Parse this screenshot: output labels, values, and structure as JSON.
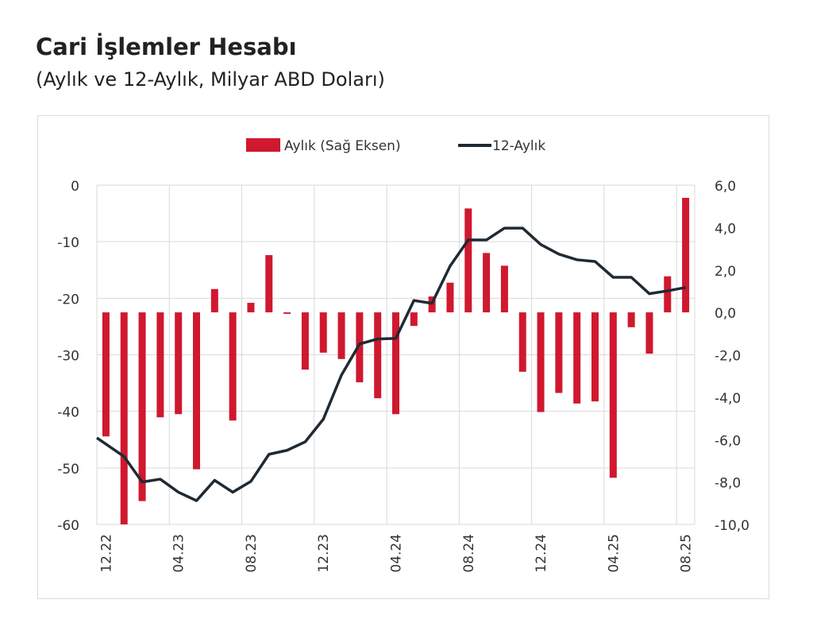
{
  "title": "Cari İşlemler Hesabı",
  "subtitle": "(Aylık ve 12-Aylık, Milyar ABD Doları)",
  "chart_data": {
    "type": "bar+line",
    "categories": [
      "12.22",
      "01.23",
      "02.23",
      "03.23",
      "04.23",
      "05.23",
      "06.23",
      "07.23",
      "08.23",
      "09.23",
      "10.23",
      "11.23",
      "12.23",
      "01.24",
      "02.24",
      "03.24",
      "04.24",
      "05.24",
      "06.24",
      "07.24",
      "08.24",
      "09.24",
      "10.24",
      "11.24",
      "12.24",
      "01.25",
      "02.25",
      "03.25",
      "04.25",
      "05.25",
      "06.25",
      "07.25",
      "08.25"
    ],
    "tick_labels": [
      "12.22",
      "04.23",
      "08.23",
      "12.23",
      "04.24",
      "08.24",
      "12.24",
      "04.25",
      "08.25"
    ],
    "series": [
      {
        "name": "Aylık (Sağ Eksen)",
        "type": "bar",
        "axis": "right",
        "color": "#d0182f",
        "values": [
          -5.85,
          -10.0,
          -8.9,
          -4.95,
          -4.8,
          -7.4,
          1.1,
          -5.1,
          0.45,
          2.7,
          -0.07,
          -2.7,
          -1.9,
          -2.2,
          -3.3,
          -4.05,
          -4.8,
          -0.64,
          0.75,
          1.4,
          4.9,
          2.8,
          2.2,
          -2.8,
          -4.7,
          -3.8,
          -4.3,
          -4.2,
          -7.8,
          -0.7,
          -1.95,
          1.7,
          5.4
        ]
      },
      {
        "name": "12-Aylık",
        "type": "line",
        "axis": "left",
        "color": "#1f2a33",
        "values": [
          -44.7,
          -48.0,
          -52.5,
          -52.0,
          -54.3,
          -55.8,
          -52.2,
          -54.3,
          -52.4,
          -47.6,
          -46.9,
          -45.4,
          -41.4,
          -33.6,
          -28.1,
          -27.2,
          -27.1,
          -20.4,
          -20.9,
          -14.3,
          -9.7,
          -9.7,
          -7.6,
          -7.6,
          -10.5,
          -12.2,
          -13.2,
          -13.5,
          -16.3,
          -16.3,
          -19.2,
          -18.7,
          -18.1
        ]
      }
    ],
    "left_axis": {
      "range": [
        -60,
        0
      ],
      "ticks": [
        "0",
        "-10",
        "-20",
        "-30",
        "-40",
        "-50",
        "-60"
      ]
    },
    "right_axis": {
      "range": [
        -10,
        6
      ],
      "ticks": [
        "6,0",
        "4,0",
        "2,0",
        "0,0",
        "-2,0",
        "-4,0",
        "-6,0",
        "-8,0",
        "-10,0"
      ]
    },
    "grid": true,
    "legend_position": "top-center"
  }
}
